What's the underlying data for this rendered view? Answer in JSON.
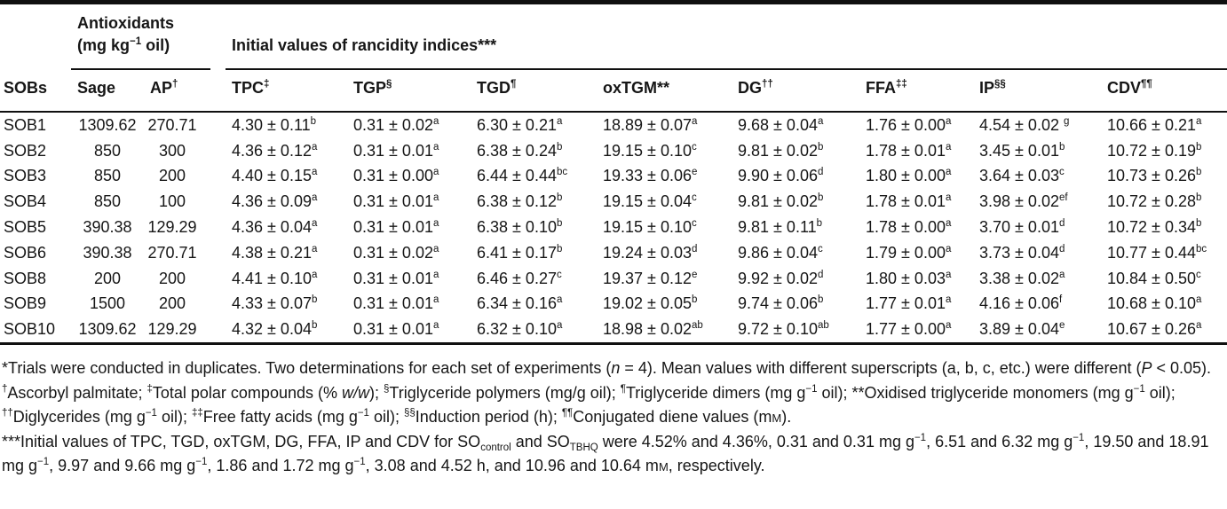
{
  "table": {
    "group_headers": {
      "antioxidants": {
        "line1": "Antioxidants",
        "line2": [
          {
            "t": "(mg kg"
          },
          {
            "sup": "−1"
          },
          {
            "t": " oil)"
          }
        ]
      },
      "rancidity": "Initial values of rancidity indices***"
    },
    "columns": [
      {
        "key": "sobs",
        "label": "SOBs",
        "sup": ""
      },
      {
        "key": "sage",
        "label": "Sage",
        "sup": ""
      },
      {
        "key": "ap",
        "label": "AP",
        "sup": "†"
      },
      {
        "key": "tpc",
        "label": "TPC",
        "sup": "‡"
      },
      {
        "key": "tgp",
        "label": "TGP",
        "sup": "§"
      },
      {
        "key": "tgd",
        "label": "TGD",
        "sup": "¶"
      },
      {
        "key": "oxtgm",
        "label": "oxTGM**",
        "sup": ""
      },
      {
        "key": "dg",
        "label": "DG",
        "sup": "††"
      },
      {
        "key": "ffa",
        "label": "FFA",
        "sup": "‡‡"
      },
      {
        "key": "ip",
        "label": "IP",
        "sup": "§§"
      },
      {
        "key": "cdv",
        "label": "CDV",
        "sup": "¶¶"
      }
    ],
    "rows": [
      {
        "sob": "SOB1",
        "sage": "1309.62",
        "ap": "270.71",
        "cells": [
          [
            "4.30 ± 0.11",
            "b"
          ],
          [
            "0.31 ± 0.02",
            "a"
          ],
          [
            "6.30 ± 0.21",
            "a"
          ],
          [
            "18.89 ± 0.07",
            "a"
          ],
          [
            "9.68 ± 0.04",
            "a"
          ],
          [
            "1.76 ± 0.00",
            "a"
          ],
          [
            "4.54 ± 0.02 ",
            "g"
          ],
          [
            "10.66 ± 0.21",
            "a"
          ]
        ]
      },
      {
        "sob": "SOB2",
        "sage": "850",
        "ap": "300",
        "cells": [
          [
            "4.36 ± 0.12",
            "a"
          ],
          [
            "0.31 ± 0.01",
            "a"
          ],
          [
            "6.38 ± 0.24",
            "b"
          ],
          [
            "19.15 ± 0.10",
            "c"
          ],
          [
            "9.81 ± 0.02",
            "b"
          ],
          [
            "1.78 ± 0.01",
            "a"
          ],
          [
            "3.45 ± 0.01",
            "b"
          ],
          [
            "10.72 ± 0.19",
            "b"
          ]
        ]
      },
      {
        "sob": "SOB3",
        "sage": "850",
        "ap": "200",
        "cells": [
          [
            "4.40 ± 0.15",
            "a"
          ],
          [
            "0.31 ± 0.00",
            "a"
          ],
          [
            "6.44 ± 0.44",
            "bc"
          ],
          [
            "19.33 ± 0.06",
            "e"
          ],
          [
            "9.90 ± 0.06",
            "d"
          ],
          [
            "1.80 ± 0.00",
            "a"
          ],
          [
            "3.64 ± 0.03",
            "c"
          ],
          [
            "10.73 ± 0.26",
            "b"
          ]
        ]
      },
      {
        "sob": "SOB4",
        "sage": "850",
        "ap": "100",
        "cells": [
          [
            "4.36 ± 0.09",
            "a"
          ],
          [
            "0.31 ± 0.01",
            "a"
          ],
          [
            "6.38 ± 0.12",
            "b"
          ],
          [
            "19.15 ± 0.04",
            "c"
          ],
          [
            "9.81 ± 0.02",
            "b"
          ],
          [
            "1.78 ± 0.01",
            "a"
          ],
          [
            "3.98 ± 0.02",
            "ef"
          ],
          [
            "10.72 ± 0.28",
            "b"
          ]
        ]
      },
      {
        "sob": "SOB5",
        "sage": "390.38",
        "ap": "129.29",
        "cells": [
          [
            "4.36 ± 0.04",
            "a"
          ],
          [
            "0.31 ± 0.01",
            "a"
          ],
          [
            "6.38 ± 0.10",
            "b"
          ],
          [
            "19.15 ± 0.10",
            "c"
          ],
          [
            "9.81 ± 0.11",
            "b"
          ],
          [
            "1.78 ± 0.00",
            "a"
          ],
          [
            "3.70 ± 0.01",
            "d"
          ],
          [
            "10.72 ± 0.34",
            "b"
          ]
        ]
      },
      {
        "sob": "SOB6",
        "sage": "390.38",
        "ap": "270.71",
        "cells": [
          [
            "4.38 ± 0.21",
            "a"
          ],
          [
            "0.31 ± 0.02",
            "a"
          ],
          [
            "6.41 ± 0.17",
            "b"
          ],
          [
            "19.24 ± 0.03",
            "d"
          ],
          [
            "9.86 ± 0.04",
            "c"
          ],
          [
            "1.79 ± 0.00",
            "a"
          ],
          [
            "3.73 ± 0.04",
            "d"
          ],
          [
            "10.77 ± 0.44",
            "bc"
          ]
        ]
      },
      {
        "sob": "SOB8",
        "sage": "200",
        "ap": "200",
        "cells": [
          [
            "4.41 ± 0.10",
            "a"
          ],
          [
            "0.31 ± 0.01",
            "a"
          ],
          [
            "6.46 ± 0.27",
            "c"
          ],
          [
            "19.37 ± 0.12",
            "e"
          ],
          [
            "9.92 ± 0.02",
            "d"
          ],
          [
            "1.80 ± 0.03",
            "a"
          ],
          [
            "3.38 ± 0.02",
            "a"
          ],
          [
            "10.84 ± 0.50",
            "c"
          ]
        ]
      },
      {
        "sob": "SOB9",
        "sage": "1500",
        "ap": "200",
        "cells": [
          [
            "4.33 ± 0.07",
            "b"
          ],
          [
            "0.31 ± 0.01",
            "a"
          ],
          [
            "6.34 ± 0.16",
            "a"
          ],
          [
            "19.02 ± 0.05",
            "b"
          ],
          [
            "9.74 ± 0.06",
            "b"
          ],
          [
            "1.77 ± 0.01",
            "a"
          ],
          [
            "4.16 ± 0.06",
            "f"
          ],
          [
            "10.68 ± 0.10",
            "a"
          ]
        ]
      },
      {
        "sob": "SOB10",
        "sage": "1309.62",
        "ap": "129.29",
        "cells": [
          [
            "4.32 ± 0.04",
            "b"
          ],
          [
            "0.31 ± 0.01",
            "a"
          ],
          [
            "6.32 ± 0.10",
            "a"
          ],
          [
            "18.98 ± 0.02",
            "ab"
          ],
          [
            "9.72 ± 0.10",
            "ab"
          ],
          [
            "1.77 ± 0.00",
            "a"
          ],
          [
            "3.89 ± 0.04",
            "e"
          ],
          [
            "10.67 ± 0.26",
            "a"
          ]
        ]
      }
    ]
  },
  "footnotes": [
    [
      {
        "t": "*Trials were conducted in duplicates. Two determinations for each set of experiments ("
      },
      {
        "i": "n"
      },
      {
        "t": " = 4). Mean values with different superscripts (a, b, c, etc.) were different ("
      },
      {
        "i": "P"
      },
      {
        "t": " < 0.05)."
      }
    ],
    [
      {
        "sup": "†"
      },
      {
        "t": "Ascorbyl palmitate; "
      },
      {
        "sup": "‡"
      },
      {
        "t": "Total polar compounds (% "
      },
      {
        "i": "w/w"
      },
      {
        "t": "); "
      },
      {
        "sup": "§"
      },
      {
        "t": "Triglyceride polymers (mg/g oil); "
      },
      {
        "sup": "¶"
      },
      {
        "t": "Triglyceride dimers (mg g"
      },
      {
        "sup": "−1"
      },
      {
        "t": " oil); **Oxidised triglyceride monomers (mg g"
      },
      {
        "sup": "−1"
      },
      {
        "t": " oil); "
      },
      {
        "sup": "††"
      },
      {
        "t": "Diglycerides (mg g"
      },
      {
        "sup": "−1"
      },
      {
        "t": " oil); "
      },
      {
        "sup": "‡‡"
      },
      {
        "t": "Free fatty acids (mg g"
      },
      {
        "sup": "−1"
      },
      {
        "t": " oil); "
      },
      {
        "sup": "§§"
      },
      {
        "t": "Induction period (h); "
      },
      {
        "sup": "¶¶"
      },
      {
        "t": "Conjugated diene values (m"
      },
      {
        "sc": "M"
      },
      {
        "t": ")."
      }
    ],
    [
      {
        "t": "***Initial values of TPC, TGD, oxTGM, DG, FFA, IP and CDV for SO"
      },
      {
        "sub": "control"
      },
      {
        "t": " and SO"
      },
      {
        "sub": "TBHQ"
      },
      {
        "t": " were 4.52% and 4.36%, 0.31 and 0.31 mg g"
      },
      {
        "sup": "−1"
      },
      {
        "t": ", 6.51 and 6.32 mg g"
      },
      {
        "sup": "−1"
      },
      {
        "t": ", 19.50 and 18.91 mg g"
      },
      {
        "sup": "−1"
      },
      {
        "t": ", 9.97 and 9.66 mg g"
      },
      {
        "sup": "−1"
      },
      {
        "t": ", 1.86 and 1.72 mg g"
      },
      {
        "sup": "−1"
      },
      {
        "t": ", 3.08 and 4.52 h, and 10.96 and 10.64 m"
      },
      {
        "sc": "M"
      },
      {
        "t": ", respectively."
      }
    ]
  ]
}
